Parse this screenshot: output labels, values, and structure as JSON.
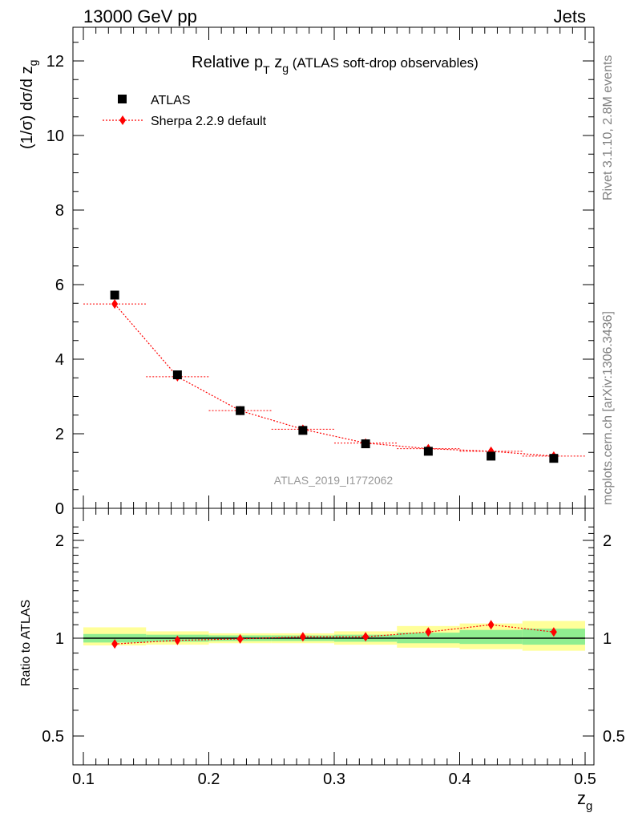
{
  "header": {
    "left": "13000 GeV pp",
    "right": "Jets"
  },
  "side_text": {
    "rivet": "Rivet 3.1.10,  2.8M events",
    "mcplots": "mcplots.cern.ch [arXiv:1306.3436]"
  },
  "title": {
    "main": "Relative p",
    "main_sub": "T",
    "main_after": " z",
    "main_after_sub": "g",
    "parenthetical": " (ATLAS soft-drop observables)"
  },
  "analysis_id": "ATLAS_2019_I1772062",
  "colors": {
    "data": "#000000",
    "mc": "#ff0000",
    "band_inner": "#90ee90",
    "band_outer": "#ffff99"
  },
  "chart_data": [
    {
      "type": "scatter",
      "panel": "main",
      "xlabel": "z",
      "xlabel_sub": "g",
      "ylabel": "(1/σ) dσ/d z",
      "ylabel_sub": "g",
      "xlim": [
        0.1,
        0.5
      ],
      "ylim": [
        0,
        13
      ],
      "x_ticks": [
        "0.1",
        "0.2",
        "0.3",
        "0.4",
        "0.5"
      ],
      "y_ticks": [
        "0",
        "2",
        "4",
        "6",
        "8",
        "10",
        "12"
      ],
      "legend": "top-left",
      "series": [
        {
          "name": "ATLAS",
          "marker": "square",
          "x": [
            0.125,
            0.175,
            0.225,
            0.275,
            0.325,
            0.375,
            0.425,
            0.475
          ],
          "y": [
            5.72,
            3.58,
            2.62,
            2.09,
            1.73,
            1.53,
            1.4,
            1.34
          ]
        },
        {
          "name": "Sherpa 2.2.9 default",
          "marker": "diamond",
          "line": "dotted",
          "x": [
            0.125,
            0.175,
            0.225,
            0.275,
            0.325,
            0.375,
            0.425,
            0.475
          ],
          "y": [
            5.48,
            3.53,
            2.62,
            2.12,
            1.75,
            1.6,
            1.53,
            1.4
          ]
        }
      ]
    },
    {
      "type": "scatter",
      "panel": "ratio",
      "ylabel": "Ratio to ATLAS",
      "xlim": [
        0.1,
        0.5
      ],
      "ylim": [
        0.4,
        2.3
      ],
      "scale": "log",
      "y_ticks": [
        "0.5",
        "1",
        "2"
      ],
      "bands": {
        "x_edges": [
          0.1,
          0.15,
          0.2,
          0.25,
          0.3,
          0.35,
          0.4,
          0.45,
          0.5
        ],
        "inner_low": [
          0.97,
          0.975,
          0.98,
          0.98,
          0.975,
          0.965,
          0.96,
          0.955
        ],
        "inner_high": [
          1.03,
          1.025,
          1.02,
          1.02,
          1.025,
          1.04,
          1.06,
          1.07
        ],
        "outer_low": [
          0.95,
          0.955,
          0.965,
          0.965,
          0.955,
          0.935,
          0.925,
          0.915
        ],
        "outer_high": [
          1.08,
          1.05,
          1.035,
          1.035,
          1.05,
          1.09,
          1.11,
          1.13
        ]
      },
      "series": [
        {
          "name": "Sherpa 2.2.9 default",
          "x": [
            0.125,
            0.175,
            0.225,
            0.275,
            0.325,
            0.375,
            0.425,
            0.475
          ],
          "y": [
            0.96,
            0.985,
            0.995,
            1.01,
            1.01,
            1.045,
            1.1,
            1.045
          ]
        }
      ]
    }
  ]
}
